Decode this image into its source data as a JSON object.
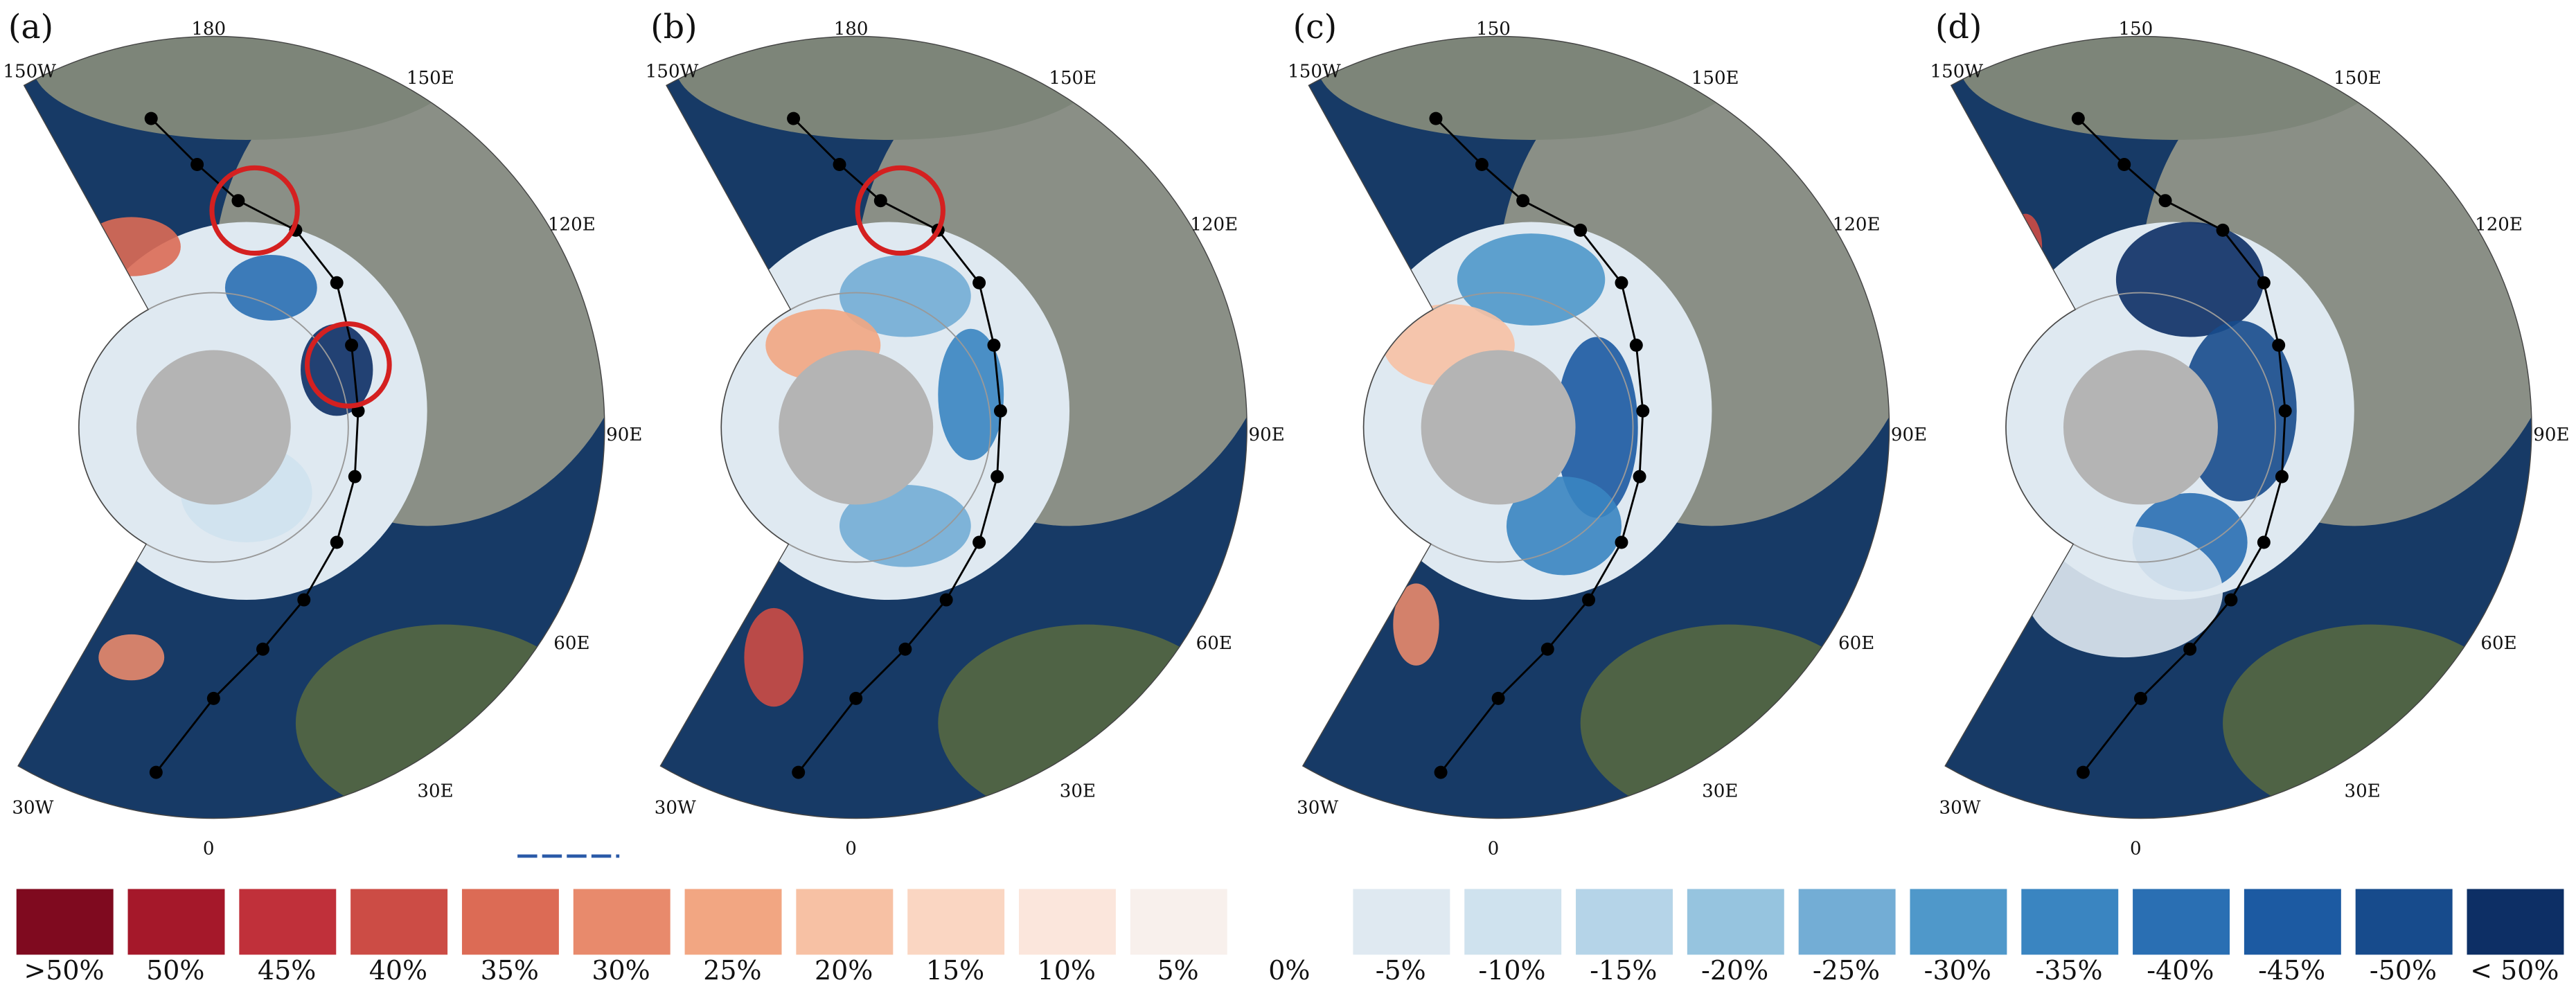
{
  "panels": [
    {
      "label": "(a)",
      "longitudes": [
        "150W",
        "180",
        "150E",
        "120E",
        "90E",
        "60E",
        "30E",
        "0",
        "30W"
      ]
    },
    {
      "label": "(b)",
      "longitudes": [
        "150W",
        "180",
        "150E",
        "120E",
        "90E",
        "60E",
        "30E",
        "0",
        "30W"
      ]
    },
    {
      "label": "(c)",
      "longitudes": [
        "150W",
        "150",
        "150E",
        "120E",
        "90E",
        "60E",
        "30E",
        "0",
        "30W"
      ]
    },
    {
      "label": "(d)",
      "longitudes": [
        "150W",
        "150",
        "150E",
        "120E",
        "90E",
        "60E",
        "30E",
        "0",
        "30W"
      ]
    }
  ],
  "legend": [
    {
      "label": ">50%",
      "color": "#7f0a1f"
    },
    {
      "label": "50%",
      "color": "#a5182a"
    },
    {
      "label": "45%",
      "color": "#c0303a"
    },
    {
      "label": "40%",
      "color": "#cc4c45"
    },
    {
      "label": "35%",
      "color": "#dc6b55"
    },
    {
      "label": "30%",
      "color": "#e88a6c"
    },
    {
      "label": "25%",
      "color": "#f2a682"
    },
    {
      "label": "20%",
      "color": "#f7c1a4"
    },
    {
      "label": "15%",
      "color": "#fad6c2"
    },
    {
      "label": "10%",
      "color": "#fbe6dc"
    },
    {
      "label": "5%",
      "color": "#f8f0ec"
    },
    {
      "label": "0%"
    },
    {
      "label": "-5%",
      "color": "#dfe9f1"
    },
    {
      "label": "-10%",
      "color": "#cfe2ee"
    },
    {
      "label": "-15%",
      "color": "#b5d4e8"
    },
    {
      "label": "-20%",
      "color": "#96c4df"
    },
    {
      "label": "-25%",
      "color": "#73add5"
    },
    {
      "label": "-30%",
      "color": "#4f98ca"
    },
    {
      "label": "-35%",
      "color": "#3a85c1"
    },
    {
      "label": "-40%",
      "color": "#2a6fb3"
    },
    {
      "label": "-45%",
      "color": "#1c5aa2"
    },
    {
      "label": "-50%",
      "color": "#174b8c"
    },
    {
      "label": "< 50%",
      "color": "#0d2f65"
    }
  ]
}
